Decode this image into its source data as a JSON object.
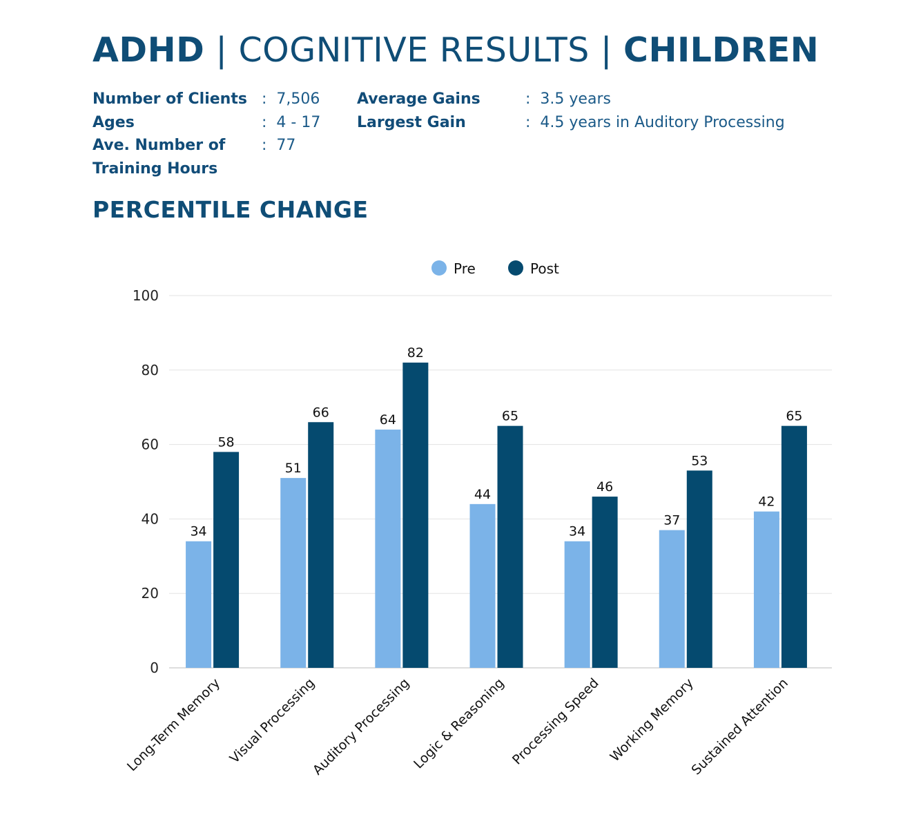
{
  "header": {
    "title_part1": "ADHD",
    "sep1": " | ",
    "title_part2": "COGNITIVE RESULTS",
    "sep2": " | ",
    "title_part3": "CHILDREN"
  },
  "stats": {
    "left": [
      {
        "label": "Number of Clients",
        "value": "7,506"
      },
      {
        "label": "Ages",
        "value": "4 - 17"
      },
      {
        "label": "Ave. Number of",
        "value": "77"
      },
      {
        "label": "Training Hours",
        "value": ""
      }
    ],
    "right": [
      {
        "label": "Average Gains",
        "value": "3.5 years"
      },
      {
        "label": "Largest Gain",
        "value": "4.5 years in Auditory Processing"
      }
    ],
    "colon": ":"
  },
  "subtitle": "PERCENTILE CHANGE",
  "chart_data": {
    "type": "bar",
    "title": "",
    "xlabel": "",
    "ylabel": "",
    "ylim": [
      0,
      100
    ],
    "yticks": [
      0,
      20,
      40,
      60,
      80,
      100
    ],
    "grid": true,
    "legend_position": "top-center",
    "categories": [
      "Long-Term Memory",
      "Visual Processing",
      "Auditory Processing",
      "Logic & Reasoning",
      "Processing Speed",
      "Working Memory",
      "Sustained Attention"
    ],
    "series": [
      {
        "name": "Pre",
        "color": "#7bb3e8",
        "values": [
          34,
          51,
          64,
          44,
          34,
          37,
          42
        ]
      },
      {
        "name": "Post",
        "color": "#054a6f",
        "values": [
          58,
          66,
          82,
          65,
          46,
          53,
          65
        ]
      }
    ]
  }
}
